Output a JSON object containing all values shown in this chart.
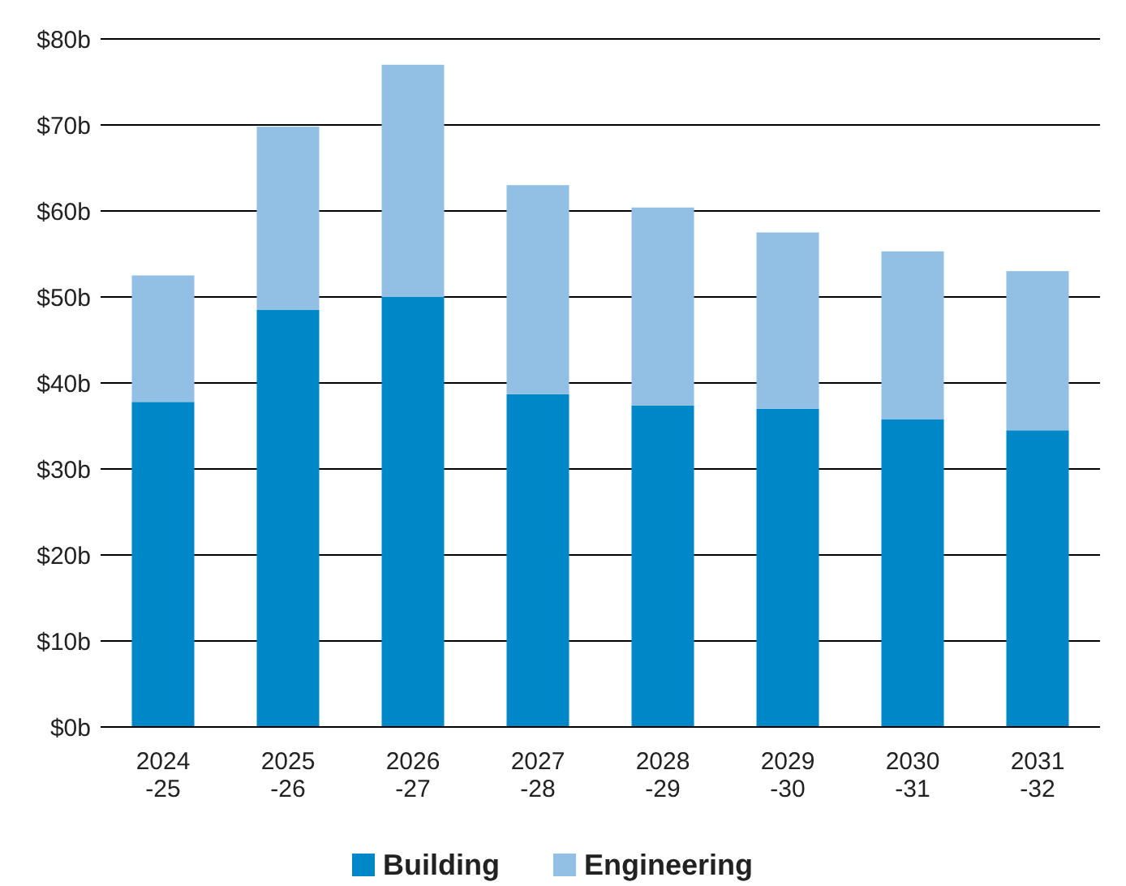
{
  "chart_data": {
    "type": "bar",
    "stacked": true,
    "categories": [
      "2024\n-25",
      "2025\n-26",
      "2026\n-27",
      "2027\n-28",
      "2028\n-29",
      "2029\n-30",
      "2030\n-31",
      "2031\n-32"
    ],
    "series": [
      {
        "name": "Building",
        "color": "#0087c8",
        "values": [
          37.8,
          48.5,
          50.0,
          38.7,
          37.4,
          37.0,
          35.8,
          34.5
        ]
      },
      {
        "name": "Engineering",
        "color": "#92c0e4",
        "values": [
          14.7,
          21.3,
          27.0,
          24.3,
          23.0,
          20.5,
          19.5,
          18.5
        ]
      }
    ],
    "ylim": [
      0,
      80
    ],
    "yticks": [
      {
        "value": 0,
        "label": "$0b"
      },
      {
        "value": 10,
        "label": "$10b"
      },
      {
        "value": 20,
        "label": "$20b"
      },
      {
        "value": 30,
        "label": "$30b"
      },
      {
        "value": 40,
        "label": "$40b"
      },
      {
        "value": 50,
        "label": "$50b"
      },
      {
        "value": 60,
        "label": "$60b"
      },
      {
        "value": 70,
        "label": "$70b"
      },
      {
        "value": 80,
        "label": "$80b"
      }
    ],
    "grid": "y",
    "legend": "bottom"
  }
}
